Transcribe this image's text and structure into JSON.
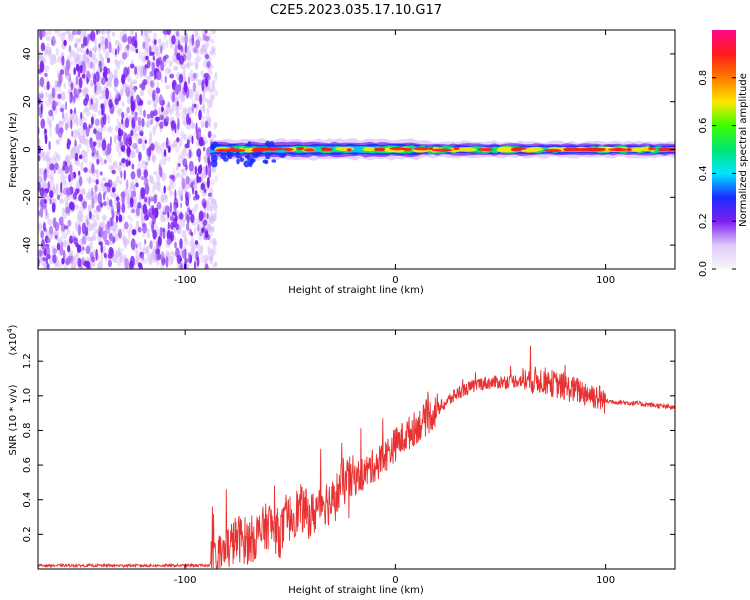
{
  "title": "C2E5.2023.035.17.10.G17",
  "colors": {
    "signal": "#e83232",
    "noise": "#7a1ff0",
    "axis": "#000000",
    "colorbar_stops": [
      "#f7f7f7",
      "#e0c8fa",
      "#7a1ff0",
      "#1b2cff",
      "#00e5ff",
      "#00e673",
      "#3cff00",
      "#ffe600",
      "#ff7a00",
      "#ff1a1a",
      "#ff0a8c"
    ]
  },
  "chart_data": [
    {
      "type": "heatmap",
      "title": "C2E5.2023.035.17.10.G17",
      "xlabel": "Height of straight line (km)",
      "ylabel": "Frequency (Hz)",
      "xlim": [
        -170,
        133
      ],
      "ylim": [
        -50,
        50
      ],
      "x_ticks": [
        -100,
        0,
        100
      ],
      "y_ticks": [
        40,
        20,
        0,
        -20,
        -40
      ],
      "grid": false,
      "noise_region": {
        "x": [
          -170,
          -88
        ],
        "frequency": [
          -50,
          50
        ],
        "approx_amplitude": 0.1
      },
      "signal_band": {
        "frequency_center": 0,
        "x": [
          -88,
          133
        ],
        "approx_amplitude": 0.8
      },
      "colorbar": {
        "label": "Normalized spectral amplitude",
        "range": [
          0.0,
          1.0
        ],
        "ticks": [
          "0.0",
          "0.2",
          "0.4",
          "0.6",
          "0.8"
        ]
      }
    },
    {
      "type": "line",
      "xlabel": "Height of straight line (km)",
      "ylabel": "SNR (10 * v/v)",
      "y_multiplier": "(x10^4)",
      "y_multiplier_base": "(x10",
      "y_multiplier_exp": "4",
      "y_multiplier_close": ")",
      "xlim": [
        -170,
        133
      ],
      "ylim": [
        0,
        1.38
      ],
      "x_ticks": [
        -100,
        0,
        100
      ],
      "y_ticks": [
        "0.2",
        "0.4",
        "0.6",
        "0.8",
        "1.0",
        "1.2"
      ],
      "grid": false,
      "series": [
        {
          "x": [
            -170,
            -140,
            -110,
            -90,
            -85,
            -80,
            -75,
            -70,
            -65,
            -60,
            -55,
            -50,
            -45,
            -40,
            -35,
            -30,
            -25,
            -20,
            -15,
            -10,
            -5,
            0,
            10,
            20,
            30,
            40,
            50,
            60,
            70,
            80,
            90,
            95,
            100,
            110,
            120,
            133
          ],
          "y": [
            0.02,
            0.02,
            0.02,
            0.02,
            0.04,
            0.12,
            0.18,
            0.16,
            0.2,
            0.26,
            0.2,
            0.3,
            0.35,
            0.3,
            0.4,
            0.38,
            0.5,
            0.52,
            0.55,
            0.6,
            0.65,
            0.72,
            0.82,
            0.92,
            1.02,
            1.07,
            1.08,
            1.09,
            1.09,
            1.05,
            1.02,
            1.0,
            0.97,
            0.96,
            0.95,
            0.93
          ]
        }
      ]
    }
  ]
}
